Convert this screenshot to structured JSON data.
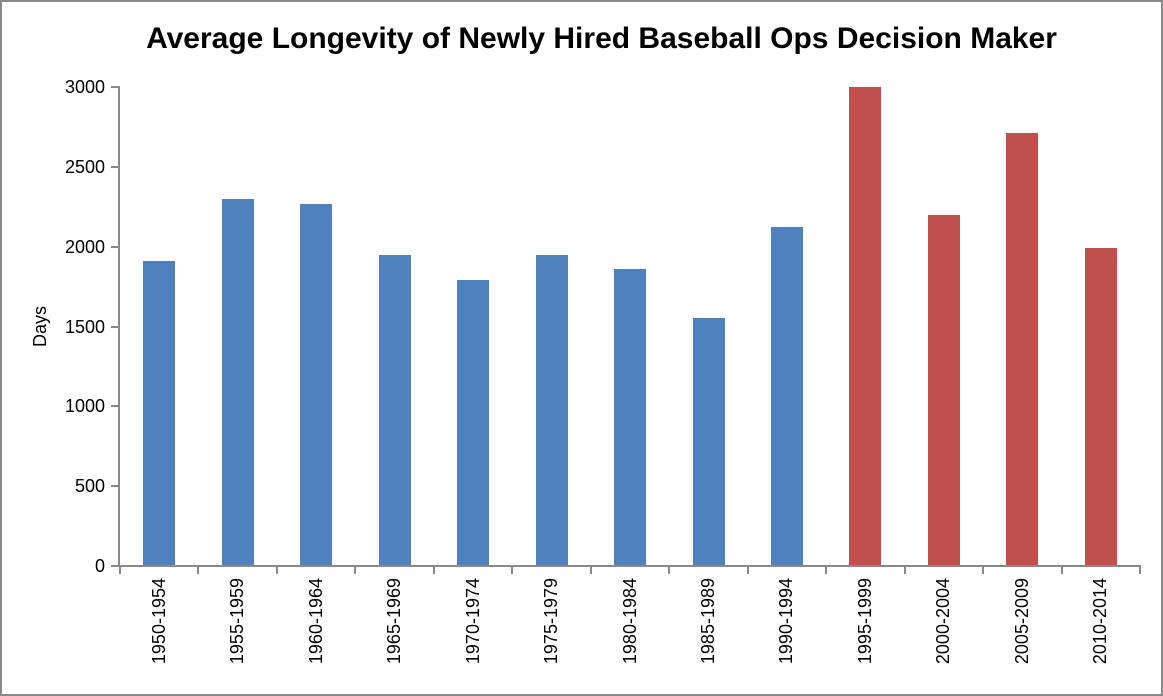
{
  "frame": {
    "background": "#FFFFFF",
    "border_color": "#898989"
  },
  "chart_data": {
    "type": "bar",
    "title": "Average Longevity of Newly Hired Baseball Ops Decision Maker",
    "xlabel": "",
    "ylabel": "Days",
    "categories": [
      "1950-1954",
      "1955-1959",
      "1960-1964",
      "1965-1969",
      "1970-1974",
      "1975-1979",
      "1980-1984",
      "1985-1989",
      "1990-1994",
      "1995-1999",
      "2000-2004",
      "2005-2009",
      "2010-2014"
    ],
    "values": [
      1905,
      2295,
      2260,
      1940,
      1785,
      1940,
      1855,
      1545,
      2120,
      2995,
      2195,
      2705,
      1985
    ],
    "bar_colors": [
      "#4F81BD",
      "#4F81BD",
      "#4F81BD",
      "#4F81BD",
      "#4F81BD",
      "#4F81BD",
      "#4F81BD",
      "#4F81BD",
      "#4F81BD",
      "#C0504D",
      "#C0504D",
      "#C0504D",
      "#C0504D"
    ],
    "ylim": [
      0,
      3000
    ],
    "yticks": [
      0,
      500,
      1000,
      1500,
      2000,
      2500,
      3000
    ],
    "grid": false,
    "legend": "none",
    "axis_color": "#898989",
    "accent_blue": "#4F81BD",
    "accent_red": "#C0504D"
  }
}
